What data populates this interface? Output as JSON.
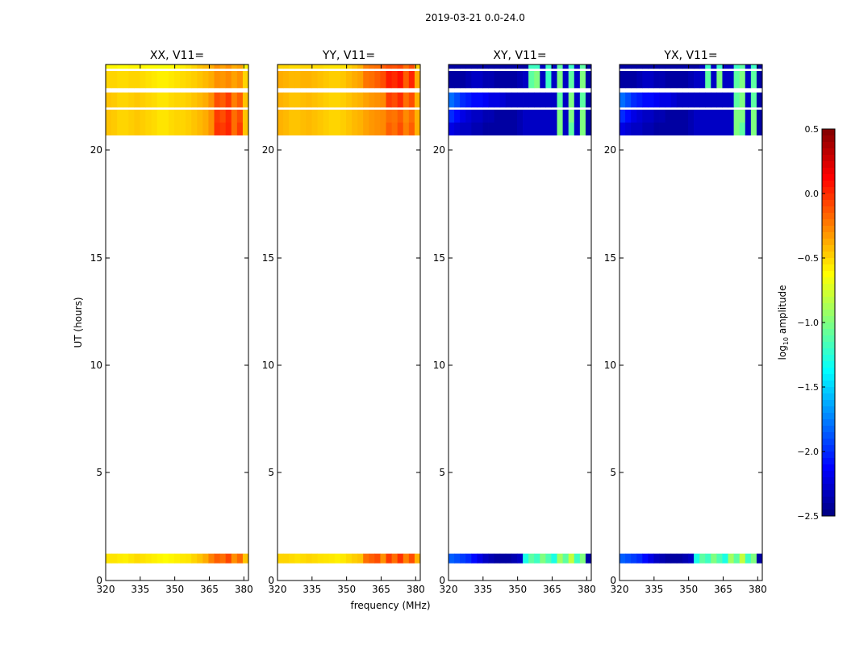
{
  "figure": {
    "suptitle": "2019-03-21 0.0-24.0",
    "ylabel": "UT (hours)",
    "xlabel": "frequency (MHz)",
    "colorbar_label_parts": [
      "log",
      "10",
      " amplitude"
    ]
  },
  "chart_data": [
    {
      "type": "heatmap",
      "title": "XX, V11=",
      "xlim": [
        320,
        382
      ],
      "ylim": [
        0,
        24
      ],
      "xticks": [
        "320",
        "335",
        "350",
        "365",
        "380"
      ],
      "yticks": [
        "0",
        "5",
        "10",
        "15",
        "20"
      ],
      "colorscale": "jet",
      "clim": [
        -2.5,
        0.5
      ],
      "time_bands": [
        {
          "t0": 0.8,
          "t1": 1.25,
          "values": [
            -0.55,
            -0.55,
            -0.57,
            -0.58,
            -0.55,
            -0.52,
            -0.54,
            -0.56,
            -0.58,
            -0.6,
            -0.62,
            -0.6,
            -0.58,
            -0.56,
            -0.55,
            -0.5,
            -0.45,
            -0.38,
            -0.25,
            -0.15,
            -0.2,
            -0.08,
            -0.3,
            -0.18,
            -0.45
          ]
        },
        {
          "t0": 20.7,
          "t1": 21.3,
          "values": [
            -0.45,
            -0.47,
            -0.5,
            -0.5,
            -0.48,
            -0.46,
            -0.48,
            -0.5,
            -0.52,
            -0.55,
            -0.55,
            -0.52,
            -0.5,
            -0.5,
            -0.48,
            -0.45,
            -0.42,
            -0.38,
            -0.3,
            -0.02,
            -0.05,
            0.02,
            -0.2,
            -0.05,
            -0.45
          ]
        },
        {
          "t0": 21.3,
          "t1": 21.9,
          "values": [
            -0.45,
            -0.47,
            -0.5,
            -0.5,
            -0.48,
            -0.46,
            -0.48,
            -0.5,
            -0.52,
            -0.55,
            -0.55,
            -0.52,
            -0.5,
            -0.5,
            -0.48,
            -0.45,
            -0.42,
            -0.38,
            -0.3,
            -0.05,
            -0.1,
            0.0,
            -0.2,
            -0.1,
            -0.45
          ]
        },
        {
          "t0": 22.0,
          "t1": 22.7,
          "values": [
            -0.45,
            -0.47,
            -0.5,
            -0.5,
            -0.48,
            -0.46,
            -0.48,
            -0.5,
            -0.52,
            -0.55,
            -0.55,
            -0.52,
            -0.5,
            -0.5,
            -0.48,
            -0.45,
            -0.42,
            -0.38,
            -0.3,
            -0.1,
            -0.15,
            -0.05,
            -0.25,
            -0.15,
            -0.45
          ]
        },
        {
          "t0": 22.9,
          "t1": 23.7,
          "values": [
            -0.5,
            -0.5,
            -0.52,
            -0.52,
            -0.5,
            -0.5,
            -0.52,
            -0.54,
            -0.56,
            -0.58,
            -0.58,
            -0.56,
            -0.54,
            -0.52,
            -0.5,
            -0.48,
            -0.45,
            -0.42,
            -0.38,
            -0.3,
            -0.32,
            -0.28,
            -0.35,
            -0.3,
            -0.5
          ]
        },
        {
          "t0": 23.8,
          "t1": 24.0,
          "values": [
            -0.6,
            -0.6,
            -0.62,
            -0.62,
            -0.6,
            -0.6,
            -0.6,
            -0.62,
            -0.62,
            -0.64,
            -0.64,
            -0.62,
            -0.6,
            -0.58,
            -0.55,
            -0.5,
            -0.45,
            -0.42,
            -0.38,
            -0.3,
            -0.35,
            -0.3,
            -0.38,
            -0.35,
            -0.6
          ]
        }
      ]
    },
    {
      "type": "heatmap",
      "title": "YY, V11=",
      "xlim": [
        320,
        382
      ],
      "ylim": [
        0,
        24
      ],
      "xticks": [
        "320",
        "335",
        "350",
        "365",
        "380"
      ],
      "yticks": [
        "0",
        "5",
        "10",
        "15",
        "20"
      ],
      "colorscale": "jet",
      "clim": [
        -2.5,
        0.5
      ],
      "time_bands": [
        {
          "t0": 0.8,
          "t1": 1.25,
          "values": [
            -0.5,
            -0.5,
            -0.52,
            -0.54,
            -0.52,
            -0.5,
            -0.52,
            -0.54,
            -0.55,
            -0.56,
            -0.58,
            -0.56,
            -0.52,
            -0.48,
            -0.45,
            -0.2,
            -0.15,
            -0.1,
            -0.3,
            -0.05,
            -0.2,
            -0.02,
            -0.25,
            -0.1,
            -0.4
          ]
        },
        {
          "t0": 20.7,
          "t1": 21.3,
          "values": [
            -0.4,
            -0.42,
            -0.45,
            -0.45,
            -0.43,
            -0.42,
            -0.44,
            -0.46,
            -0.48,
            -0.5,
            -0.5,
            -0.48,
            -0.45,
            -0.42,
            -0.4,
            -0.35,
            -0.32,
            -0.3,
            -0.28,
            -0.15,
            -0.2,
            -0.1,
            -0.25,
            -0.15,
            -0.4
          ]
        },
        {
          "t0": 21.3,
          "t1": 21.9,
          "values": [
            -0.4,
            -0.42,
            -0.45,
            -0.45,
            -0.43,
            -0.42,
            -0.44,
            -0.46,
            -0.48,
            -0.5,
            -0.5,
            -0.48,
            -0.45,
            -0.42,
            -0.4,
            -0.35,
            -0.32,
            -0.3,
            -0.28,
            -0.2,
            -0.22,
            -0.15,
            -0.28,
            -0.2,
            -0.4
          ]
        },
        {
          "t0": 22.0,
          "t1": 22.7,
          "values": [
            -0.4,
            -0.42,
            -0.45,
            -0.45,
            -0.43,
            -0.42,
            -0.44,
            -0.46,
            -0.48,
            -0.5,
            -0.5,
            -0.48,
            -0.45,
            -0.42,
            -0.4,
            -0.35,
            -0.32,
            -0.3,
            -0.28,
            -0.05,
            -0.1,
            0.0,
            -0.2,
            -0.1,
            -0.4
          ]
        },
        {
          "t0": 22.9,
          "t1": 23.7,
          "values": [
            -0.38,
            -0.4,
            -0.42,
            -0.42,
            -0.4,
            -0.4,
            -0.42,
            -0.44,
            -0.46,
            -0.48,
            -0.48,
            -0.46,
            -0.42,
            -0.38,
            -0.35,
            -0.22,
            -0.2,
            -0.15,
            -0.1,
            0.05,
            0.0,
            0.08,
            -0.15,
            0.02,
            -0.38
          ]
        },
        {
          "t0": 23.8,
          "t1": 24.0,
          "values": [
            -0.5,
            -0.5,
            -0.52,
            -0.52,
            -0.5,
            -0.5,
            -0.52,
            -0.52,
            -0.54,
            -0.55,
            -0.55,
            -0.54,
            -0.5,
            -0.45,
            -0.4,
            -0.25,
            -0.22,
            -0.2,
            -0.15,
            -0.1,
            -0.12,
            -0.08,
            -0.2,
            -0.1,
            -0.5
          ]
        }
      ]
    },
    {
      "type": "heatmap",
      "title": "XY, V11=",
      "xlim": [
        320,
        382
      ],
      "ylim": [
        0,
        24
      ],
      "xticks": [
        "320",
        "335",
        "350",
        "365",
        "380"
      ],
      "yticks": [
        "0",
        "5",
        "10",
        "15",
        "20"
      ],
      "colorscale": "jet",
      "clim": [
        -2.5,
        0.5
      ],
      "time_bands": [
        {
          "t0": 0.8,
          "t1": 1.25,
          "values": [
            -1.85,
            -1.9,
            -1.95,
            -2.0,
            -2.1,
            -2.2,
            -2.3,
            -2.35,
            -2.4,
            -2.4,
            -2.4,
            -2.35,
            -2.3,
            -1.3,
            -1.1,
            -1.2,
            -1.0,
            -1.15,
            -1.3,
            -0.9,
            -1.1,
            -0.8,
            -1.2,
            -1.0,
            -2.4
          ]
        },
        {
          "t0": 20.7,
          "t1": 21.3,
          "values": [
            -2.2,
            -2.25,
            -2.3,
            -2.3,
            -2.35,
            -2.35,
            -2.4,
            -2.4,
            -2.4,
            -2.4,
            -2.4,
            -2.4,
            -2.35,
            -2.3,
            -2.3,
            -2.3,
            -2.3,
            -2.3,
            -2.3,
            -1.0,
            -2.3,
            -1.1,
            -2.3,
            -1.0,
            -2.4
          ]
        },
        {
          "t0": 21.3,
          "t1": 21.9,
          "values": [
            -2.0,
            -2.1,
            -2.2,
            -2.25,
            -2.3,
            -2.3,
            -2.35,
            -2.35,
            -2.4,
            -2.4,
            -2.4,
            -2.4,
            -2.35,
            -2.3,
            -2.3,
            -2.3,
            -2.3,
            -2.3,
            -2.3,
            -1.0,
            -2.3,
            -1.0,
            -2.3,
            -1.0,
            -2.4
          ]
        },
        {
          "t0": 22.0,
          "t1": 22.7,
          "values": [
            -1.8,
            -1.9,
            -2.0,
            -2.05,
            -2.1,
            -2.1,
            -2.15,
            -2.2,
            -2.2,
            -2.25,
            -2.3,
            -2.3,
            -2.3,
            -2.3,
            -2.3,
            -2.3,
            -2.3,
            -2.3,
            -2.3,
            -1.1,
            -2.3,
            -1.0,
            -2.3,
            -1.1,
            -2.4
          ]
        },
        {
          "t0": 22.9,
          "t1": 23.7,
          "values": [
            -2.4,
            -2.4,
            -2.4,
            -2.35,
            -2.3,
            -2.3,
            -2.35,
            -2.35,
            -2.4,
            -2.4,
            -2.4,
            -2.4,
            -2.35,
            -2.3,
            -1.1,
            -1.0,
            -2.3,
            -1.2,
            -2.3,
            -1.0,
            -2.3,
            -1.1,
            -2.3,
            -1.0,
            -2.4
          ]
        },
        {
          "t0": 23.8,
          "t1": 24.0,
          "values": [
            -2.4,
            -2.4,
            -2.4,
            -2.4,
            -2.4,
            -2.4,
            -2.4,
            -2.4,
            -2.4,
            -2.4,
            -2.4,
            -2.4,
            -2.4,
            -2.4,
            -1.2,
            -1.2,
            -2.3,
            -1.2,
            -2.3,
            -1.1,
            -2.3,
            -1.2,
            -2.3,
            -1.1,
            -2.4
          ]
        }
      ]
    },
    {
      "type": "heatmap",
      "title": "YX, V11=",
      "xlim": [
        320,
        382
      ],
      "ylim": [
        0,
        24
      ],
      "xticks": [
        "320",
        "335",
        "350",
        "365",
        "380"
      ],
      "yticks": [
        "0",
        "5",
        "10",
        "15",
        "20"
      ],
      "colorscale": "jet",
      "clim": [
        -2.5,
        0.5
      ],
      "time_bands": [
        {
          "t0": 0.8,
          "t1": 1.25,
          "values": [
            -1.85,
            -1.9,
            -1.95,
            -2.0,
            -2.1,
            -2.2,
            -2.3,
            -2.35,
            -2.4,
            -2.4,
            -2.4,
            -2.35,
            -2.3,
            -1.3,
            -1.1,
            -1.2,
            -1.0,
            -1.15,
            -1.3,
            -0.9,
            -1.1,
            -0.8,
            -1.2,
            -1.0,
            -2.4
          ]
        },
        {
          "t0": 20.7,
          "t1": 21.3,
          "values": [
            -2.2,
            -2.25,
            -2.3,
            -2.3,
            -2.35,
            -2.35,
            -2.4,
            -2.4,
            -2.4,
            -2.4,
            -2.4,
            -2.4,
            -2.35,
            -2.3,
            -2.3,
            -2.3,
            -2.3,
            -2.3,
            -2.3,
            -2.3,
            -1.0,
            -1.1,
            -2.3,
            -1.0,
            -2.4
          ]
        },
        {
          "t0": 21.3,
          "t1": 21.9,
          "values": [
            -2.0,
            -2.1,
            -2.2,
            -2.25,
            -2.3,
            -2.3,
            -2.35,
            -2.35,
            -2.4,
            -2.4,
            -2.4,
            -2.4,
            -2.35,
            -2.3,
            -2.3,
            -2.3,
            -2.3,
            -2.3,
            -2.3,
            -2.3,
            -1.0,
            -1.0,
            -2.3,
            -1.0,
            -2.4
          ]
        },
        {
          "t0": 22.0,
          "t1": 22.7,
          "values": [
            -1.8,
            -1.9,
            -2.0,
            -2.05,
            -2.1,
            -2.1,
            -2.15,
            -2.2,
            -2.2,
            -2.25,
            -2.3,
            -2.3,
            -2.3,
            -2.3,
            -2.3,
            -2.3,
            -2.3,
            -2.3,
            -2.3,
            -2.3,
            -1.1,
            -1.0,
            -2.3,
            -1.1,
            -2.4
          ]
        },
        {
          "t0": 22.9,
          "t1": 23.7,
          "values": [
            -2.4,
            -2.4,
            -2.4,
            -2.35,
            -2.3,
            -2.3,
            -2.35,
            -2.35,
            -2.4,
            -2.4,
            -2.4,
            -2.4,
            -2.35,
            -2.3,
            -2.3,
            -1.1,
            -2.3,
            -1.0,
            -2.3,
            -2.3,
            -1.1,
            -1.0,
            -2.3,
            -1.1,
            -2.4
          ]
        },
        {
          "t0": 23.8,
          "t1": 24.0,
          "values": [
            -2.4,
            -2.4,
            -2.4,
            -2.4,
            -2.4,
            -2.4,
            -2.4,
            -2.4,
            -2.4,
            -2.4,
            -2.4,
            -2.4,
            -2.4,
            -2.4,
            -2.3,
            -1.2,
            -2.3,
            -1.2,
            -2.3,
            -2.3,
            -1.2,
            -1.1,
            -2.3,
            -1.2,
            -2.4
          ]
        }
      ]
    }
  ],
  "colorbar": {
    "clim": [
      -2.5,
      0.5
    ],
    "ticks": [
      "0.5",
      "0.0",
      "−0.5",
      "−1.0",
      "−1.5",
      "−2.0",
      "−2.5"
    ],
    "tick_values": [
      0.5,
      0.0,
      -0.5,
      -1.0,
      -1.5,
      -2.0,
      -2.5
    ]
  }
}
